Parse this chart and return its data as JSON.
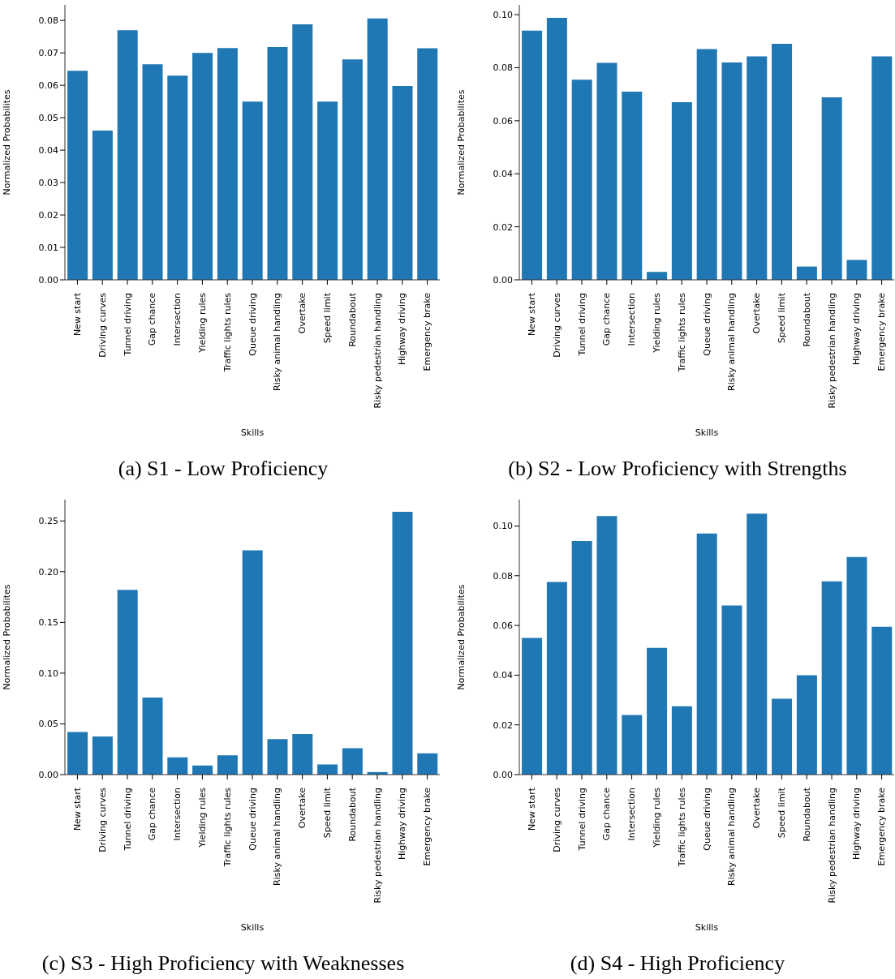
{
  "chart_data": [
    {
      "type": "bar",
      "title": "(a) S1 - Low Proficiency",
      "xlabel": "Skills",
      "ylabel": "Normalized Probabilites",
      "color": "#1f77b4",
      "categories": [
        "New start",
        "Driving curves",
        "Tunnel driving",
        "Gap chance",
        "Intersection",
        "Yielding rules",
        "Traffic lights rules",
        "Queue driving",
        "Risky animal handling",
        "Overtake",
        "Speed limit",
        "Roundabout",
        "Risky pedestrian handling",
        "Highway driving",
        "Emergency brake"
      ],
      "values": [
        0.0645,
        0.046,
        0.077,
        0.0665,
        0.063,
        0.07,
        0.0715,
        0.055,
        0.0718,
        0.0788,
        0.055,
        0.068,
        0.0806,
        0.0598,
        0.0714
      ],
      "ylim": [
        0,
        0.0848
      ],
      "yticks": [
        {
          "value": 0,
          "label": "0.00"
        },
        {
          "value": 0.01,
          "label": "0.01"
        },
        {
          "value": 0.02,
          "label": "0.02"
        },
        {
          "value": 0.03,
          "label": "0.03"
        },
        {
          "value": 0.04,
          "label": "0.04"
        },
        {
          "value": 0.05,
          "label": "0.05"
        },
        {
          "value": 0.06,
          "label": "0.06"
        },
        {
          "value": 0.07,
          "label": "0.07"
        },
        {
          "value": 0.08,
          "label": "0.08"
        }
      ]
    },
    {
      "type": "bar",
      "title": "(b) S2 - Low Proficiency with Strengths",
      "xlabel": "Skills",
      "ylabel": "Normalized Probabilites",
      "color": "#1f77b4",
      "categories": [
        "New start",
        "Driving curves",
        "Tunnel driving",
        "Gap chance",
        "Intersection",
        "Yielding rules",
        "Traffic lights rules",
        "Queue driving",
        "Risky animal handling",
        "Overtake",
        "Speed limit",
        "Roundabout",
        "Risky pedestrian handling",
        "Highway driving",
        "Emergency brake"
      ],
      "values": [
        0.094,
        0.0988,
        0.0755,
        0.0818,
        0.071,
        0.003,
        0.067,
        0.087,
        0.082,
        0.0843,
        0.089,
        0.005,
        0.0688,
        0.0075,
        0.0843
      ],
      "ylim": [
        0,
        0.1037
      ],
      "yticks": [
        {
          "value": 0,
          "label": "0.00"
        },
        {
          "value": 0.02,
          "label": "0.02"
        },
        {
          "value": 0.04,
          "label": "0.04"
        },
        {
          "value": 0.06,
          "label": "0.06"
        },
        {
          "value": 0.08,
          "label": "0.08"
        },
        {
          "value": 0.1,
          "label": "0.10"
        }
      ]
    },
    {
      "type": "bar",
      "title": "(c) S3 - High Proficiency with Weaknesses",
      "xlabel": "Skills",
      "ylabel": "Normalized Probabilites",
      "color": "#1f77b4",
      "categories": [
        "New start",
        "Driving curves",
        "Tunnel driving",
        "Gap chance",
        "Intersection",
        "Yielding rules",
        "Traffic lights rules",
        "Queue driving",
        "Risky animal handling",
        "Overtake",
        "Speed limit",
        "Roundabout",
        "Risky pedestrian handling",
        "Highway driving",
        "Emergency brake"
      ],
      "values": [
        0.042,
        0.0375,
        0.182,
        0.076,
        0.017,
        0.009,
        0.019,
        0.221,
        0.035,
        0.04,
        0.01,
        0.026,
        0.0025,
        0.259,
        0.021
      ],
      "ylim": [
        0,
        0.271
      ],
      "yticks": [
        {
          "value": 0,
          "label": "0.00"
        },
        {
          "value": 0.05,
          "label": "0.05"
        },
        {
          "value": 0.1,
          "label": "0.10"
        },
        {
          "value": 0.15,
          "label": "0.15"
        },
        {
          "value": 0.2,
          "label": "0.20"
        },
        {
          "value": 0.25,
          "label": "0.25"
        }
      ]
    },
    {
      "type": "bar",
      "title": "(d) S4 - High Proficiency",
      "xlabel": "Skills",
      "ylabel": "Normalized Probabilites",
      "color": "#1f77b4",
      "categories": [
        "New start",
        "Driving curves",
        "Tunnel driving",
        "Gap chance",
        "Intersection",
        "Yielding rules",
        "Traffic lights rules",
        "Queue driving",
        "Risky animal handling",
        "Overtake",
        "Speed limit",
        "Roundabout",
        "Risky pedestrian handling",
        "Highway driving",
        "Emergency brake"
      ],
      "values": [
        0.055,
        0.0775,
        0.094,
        0.104,
        0.024,
        0.051,
        0.0275,
        0.097,
        0.068,
        0.105,
        0.0305,
        0.04,
        0.0777,
        0.0875,
        0.0595
      ],
      "ylim": [
        0,
        0.1106
      ],
      "yticks": [
        {
          "value": 0,
          "label": "0.00"
        },
        {
          "value": 0.02,
          "label": "0.02"
        },
        {
          "value": 0.04,
          "label": "0.04"
        },
        {
          "value": 0.06,
          "label": "0.06"
        },
        {
          "value": 0.08,
          "label": "0.08"
        },
        {
          "value": 0.1,
          "label": "0.10"
        }
      ]
    }
  ]
}
